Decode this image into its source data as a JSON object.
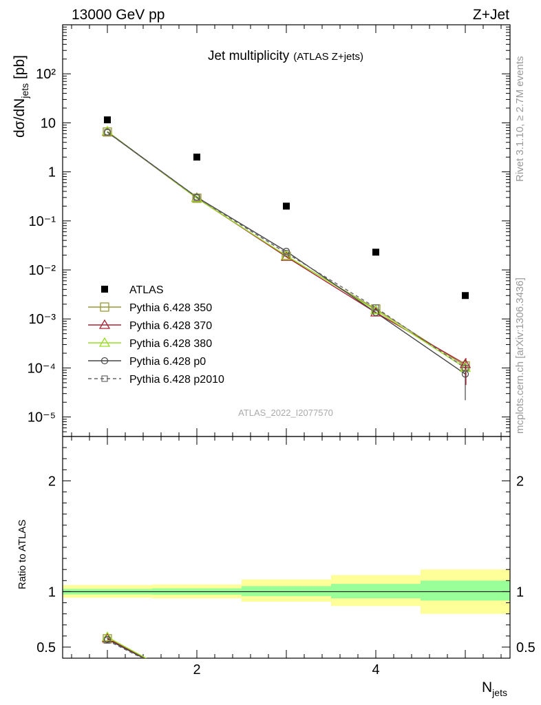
{
  "header": {
    "beam": "13000 GeV pp",
    "process": "Z+Jet"
  },
  "side_labels": {
    "rivet": "Rivet 3.1.10, ≥ 2.7M events",
    "mcplots": "mcplots.cern.ch [arXiv:1306.3436]"
  },
  "analysis_id": "ATLAS_2022_I2077570",
  "colors": {
    "data": "#000000",
    "p350": "#999933",
    "p370": "#aa2233",
    "p380": "#99dd22",
    "p0": "#444444",
    "p2010": "#666666",
    "band_inner": "#99ff99",
    "band_outer": "#ffff99"
  },
  "chart_data": [
    {
      "panel": "main",
      "type": "scatter",
      "title": "Jet multiplicity",
      "subtitle": "(ATLAS Z+jets)",
      "ylabel": "dσ/dN",
      "ylabel_sub": "jets",
      "ylabel_unit": " [pb]",
      "yscale": "log",
      "xlim": [
        0.5,
        5.5
      ],
      "ylim": [
        4e-06,
        1000
      ],
      "y_tick_labels": [
        "10⁻⁵",
        "10⁻⁴",
        "10⁻³",
        "10⁻²",
        "10⁻¹",
        "1",
        "10",
        "10²"
      ],
      "legend_position": "lower-left",
      "x": [
        1,
        2,
        3,
        4,
        5
      ],
      "series": [
        {
          "name": "ATLAS",
          "marker": "filled-square",
          "style": "marker-only",
          "values": [
            11.5,
            2.0,
            0.2,
            0.023,
            0.003
          ]
        },
        {
          "name": "Pythia 6.428 350",
          "marker": "open-square",
          "style": "solid",
          "values": [
            6.5,
            0.29,
            0.019,
            0.0016,
            0.00011
          ]
        },
        {
          "name": "Pythia 6.428 370",
          "marker": "open-triangle",
          "style": "solid",
          "values": [
            6.6,
            0.295,
            0.0185,
            0.00135,
            0.00012
          ]
        },
        {
          "name": "Pythia 6.428 380",
          "marker": "open-triangle",
          "style": "solid",
          "values": [
            6.7,
            0.29,
            0.0195,
            0.0015,
            0.0001
          ]
        },
        {
          "name": "Pythia 6.428 p0",
          "marker": "open-circle",
          "style": "solid",
          "values": [
            6.5,
            0.305,
            0.024,
            0.00135,
            7.5e-05
          ]
        },
        {
          "name": "Pythia 6.428 p2010",
          "marker": "open-square-small",
          "style": "dashed",
          "values": [
            6.4,
            0.3,
            0.022,
            0.0017,
            0.0001
          ]
        }
      ]
    },
    {
      "panel": "ratio",
      "type": "line",
      "ylabel": "Ratio to ATLAS",
      "xlabel": "N",
      "xlabel_sub": "jets",
      "xlim": [
        0.5,
        5.5
      ],
      "ylim": [
        0.4,
        2.4
      ],
      "x_tick_labels": [
        "2",
        "4"
      ],
      "y_tick_labels": [
        "0.5",
        "1",
        "2"
      ],
      "reference_bands": {
        "bins": [
          [
            0.5,
            1.5
          ],
          [
            1.5,
            2.5
          ],
          [
            2.5,
            3.5
          ],
          [
            3.5,
            4.5
          ],
          [
            4.5,
            5.5
          ]
        ],
        "inner": [
          [
            0.975,
            1.025
          ],
          [
            0.973,
            1.03
          ],
          [
            0.96,
            1.05
          ],
          [
            0.94,
            1.07
          ],
          [
            0.92,
            1.1
          ]
        ],
        "outer": [
          [
            0.945,
            1.06
          ],
          [
            0.94,
            1.065
          ],
          [
            0.91,
            1.11
          ],
          [
            0.87,
            1.15
          ],
          [
            0.8,
            1.2
          ]
        ]
      },
      "x": [
        1,
        2
      ],
      "series": [
        {
          "name": "Pythia 6.428 350",
          "values": [
            0.575,
            0.15
          ]
        },
        {
          "name": "Pythia 6.428 370",
          "values": [
            0.58,
            0.15
          ]
        },
        {
          "name": "Pythia 6.428 380",
          "values": [
            0.59,
            0.15
          ]
        },
        {
          "name": "Pythia 6.428 p0",
          "values": [
            0.57,
            0.15
          ]
        },
        {
          "name": "Pythia 6.428 p2010",
          "values": [
            0.56,
            0.15
          ]
        }
      ]
    }
  ]
}
